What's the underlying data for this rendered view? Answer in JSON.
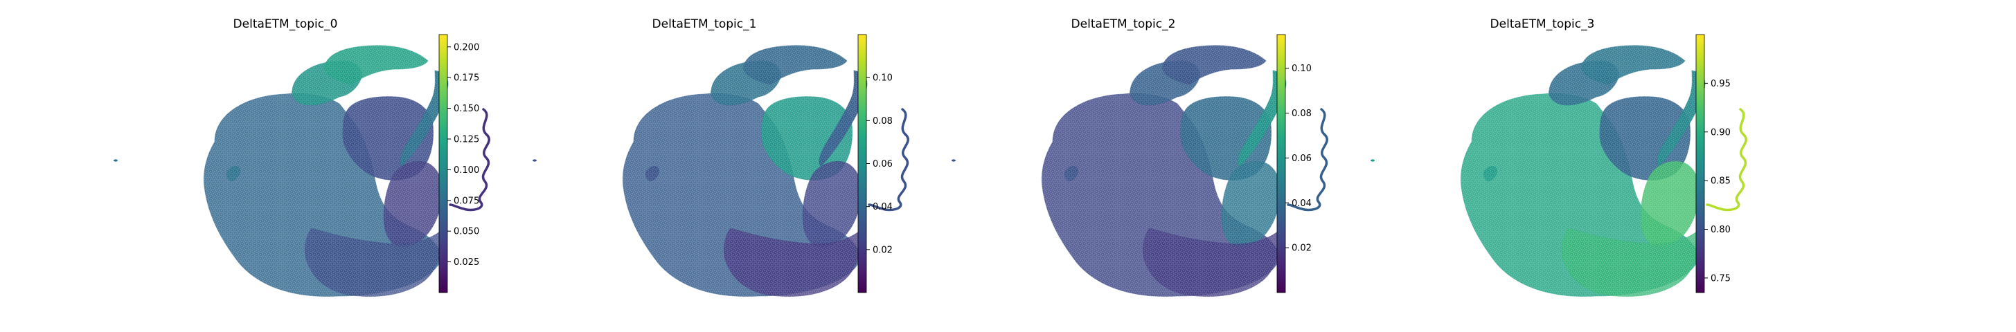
{
  "chart_data": [
    {
      "type": "scatter",
      "title": "DeltaETM_topic_0",
      "colorbar": {
        "colormap": "viridis",
        "range": [
          0.0,
          0.21
        ],
        "ticks": [
          0.025,
          0.05,
          0.075,
          0.1,
          0.125,
          0.15,
          0.175,
          0.2
        ],
        "tick_labels": [
          "0.025",
          "0.050",
          "0.075",
          "0.100",
          "0.125",
          "0.150",
          "0.175",
          "0.200"
        ]
      },
      "regions": {
        "body": 0.07,
        "upper_lobe": 0.11,
        "inner_core": 0.05,
        "top_right_lobe": 0.12,
        "right_stripe": 0.08,
        "ribbon": 0.03,
        "lower_right": 0.04,
        "bottom_arc": 0.05,
        "left_tip": 0.08
      },
      "grid": false,
      "axes_visible": false
    },
    {
      "type": "scatter",
      "title": "DeltaETM_topic_1",
      "colorbar": {
        "colormap": "viridis",
        "range": [
          0.0,
          0.12
        ],
        "ticks": [
          0.02,
          0.04,
          0.06,
          0.08,
          0.1
        ],
        "tick_labels": [
          "0.02",
          "0.04",
          "0.06",
          "0.08",
          "0.10"
        ]
      },
      "regions": {
        "body": 0.035,
        "upper_lobe": 0.045,
        "inner_core": 0.065,
        "top_right_lobe": 0.04,
        "right_stripe": 0.035,
        "ribbon": 0.03,
        "lower_right": 0.025,
        "bottom_arc": 0.02,
        "left_tip": 0.03
      },
      "grid": false,
      "axes_visible": false
    },
    {
      "type": "scatter",
      "title": "DeltaETM_topic_2",
      "colorbar": {
        "colormap": "viridis",
        "range": [
          0.0,
          0.115
        ],
        "ticks": [
          0.02,
          0.04,
          0.06,
          0.08,
          0.1
        ],
        "tick_labels": [
          "0.02",
          "0.04",
          "0.06",
          "0.08",
          "0.10"
        ]
      },
      "regions": {
        "body": 0.025,
        "upper_lobe": 0.035,
        "inner_core": 0.04,
        "top_right_lobe": 0.03,
        "right_stripe": 0.06,
        "ribbon": 0.035,
        "lower_right": 0.045,
        "bottom_arc": 0.02,
        "left_tip": 0.03
      },
      "grid": false,
      "axes_visible": false
    },
    {
      "type": "scatter",
      "title": "DeltaETM_topic_3",
      "colorbar": {
        "colormap": "viridis",
        "range": [
          0.735,
          1.0
        ],
        "ticks": [
          0.75,
          0.8,
          0.85,
          0.9,
          0.95
        ],
        "tick_labels": [
          "0.75",
          "0.80",
          "0.85",
          "0.90",
          "0.95"
        ]
      },
      "regions": {
        "body": 0.89,
        "upper_lobe": 0.83,
        "inner_core": 0.82,
        "top_right_lobe": 0.84,
        "right_stripe": 0.86,
        "ribbon": 0.97,
        "lower_right": 0.92,
        "bottom_arc": 0.91,
        "left_tip": 0.88
      },
      "grid": false,
      "axes_visible": false
    }
  ],
  "colors": {
    "background": "#ffffff",
    "text": "#000000"
  }
}
